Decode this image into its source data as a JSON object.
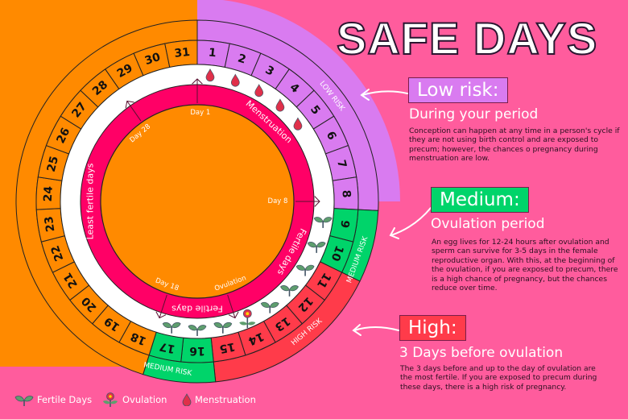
{
  "title": "SAFE DAYS",
  "colors": {
    "background": "#FF5C9D",
    "orange": "#FF8A00",
    "low": "#D97BF0",
    "medium": "#00D46A",
    "high": "#FF3B4A",
    "cycle_ring": "#FF0066",
    "drop": "#E0304A",
    "sprout": "#5E9E6E"
  },
  "wheel": {
    "days": [
      {
        "n": "1",
        "risk": "low",
        "icon": "drop"
      },
      {
        "n": "2",
        "risk": "low",
        "icon": "drop"
      },
      {
        "n": "3",
        "risk": "low",
        "icon": "drop"
      },
      {
        "n": "4",
        "risk": "low",
        "icon": "drop"
      },
      {
        "n": "5",
        "risk": "low",
        "icon": "drop"
      },
      {
        "n": "6",
        "risk": "low"
      },
      {
        "n": "7",
        "risk": "low"
      },
      {
        "n": "8",
        "risk": "low"
      },
      {
        "n": "9",
        "risk": "medium",
        "icon": "sprout"
      },
      {
        "n": "10",
        "risk": "medium",
        "icon": "sprout"
      },
      {
        "n": "11",
        "risk": "high",
        "icon": "sprout"
      },
      {
        "n": "12",
        "risk": "high",
        "icon": "sprout"
      },
      {
        "n": "13",
        "risk": "high",
        "icon": "sprout"
      },
      {
        "n": "14",
        "risk": "high",
        "icon": "flower"
      },
      {
        "n": "15",
        "risk": "high",
        "icon": "sprout"
      },
      {
        "n": "16",
        "risk": "medium",
        "icon": "sprout"
      },
      {
        "n": "17",
        "risk": "medium",
        "icon": "sprout"
      },
      {
        "n": "18",
        "risk": "none"
      },
      {
        "n": "19",
        "risk": "none"
      },
      {
        "n": "20",
        "risk": "none"
      },
      {
        "n": "21",
        "risk": "none"
      },
      {
        "n": "22",
        "risk": "none"
      },
      {
        "n": "23",
        "risk": "none"
      },
      {
        "n": "24",
        "risk": "none"
      },
      {
        "n": "25",
        "risk": "none"
      },
      {
        "n": "26",
        "risk": "none"
      },
      {
        "n": "27",
        "risk": "none"
      },
      {
        "n": "28",
        "risk": "none"
      },
      {
        "n": "29",
        "risk": "none"
      },
      {
        "n": "30",
        "risk": "none"
      },
      {
        "n": "31",
        "risk": "none"
      }
    ],
    "risk_labels": {
      "low": "LOW RISK",
      "medium_right": "MEDIUM RISK",
      "high": "HIGH RISK",
      "medium_bottom": "MEDIUM RISK"
    },
    "cycle_labels": {
      "day1": "Day 1",
      "day8": "Day 8",
      "day18": "Day 18",
      "day28": "Day 28",
      "ovulation": "Ovulation",
      "menstruation": "Menstruation",
      "fertile_right": "Fertile days",
      "fertile_bottom": "Fertile days",
      "least_fertile": "Least fertile days"
    }
  },
  "cards": {
    "low": {
      "tag": "Low risk:",
      "subtitle": "During your period",
      "body": "Conception can happen at any time in a person's cycle if they are not using birth control and are exposed to precum; however, the chances o pregnancy during menstruation are low."
    },
    "medium": {
      "tag": "Medium:",
      "subtitle": "Ovulation period",
      "body": "An egg lives for 12-24 hours after ovulation and sperm can survive for 3-5 days in the female reproductive organ. With this, at the beginning of the ovulation, if you are exposed to precum, there is a high chance of pregnancy, but the chances reduce over time."
    },
    "high": {
      "tag": "High:",
      "subtitle": "3 Days before ovulation",
      "body": "The 3 days before and up to the day of ovulation are the most fertile. If you are exposed to precum during these days, there is a high risk of pregnancy."
    }
  },
  "legend": [
    {
      "icon": "sprout",
      "label": "Fertile Days"
    },
    {
      "icon": "flower",
      "label": "Ovulation"
    },
    {
      "icon": "drop",
      "label": "Menstruation"
    }
  ]
}
